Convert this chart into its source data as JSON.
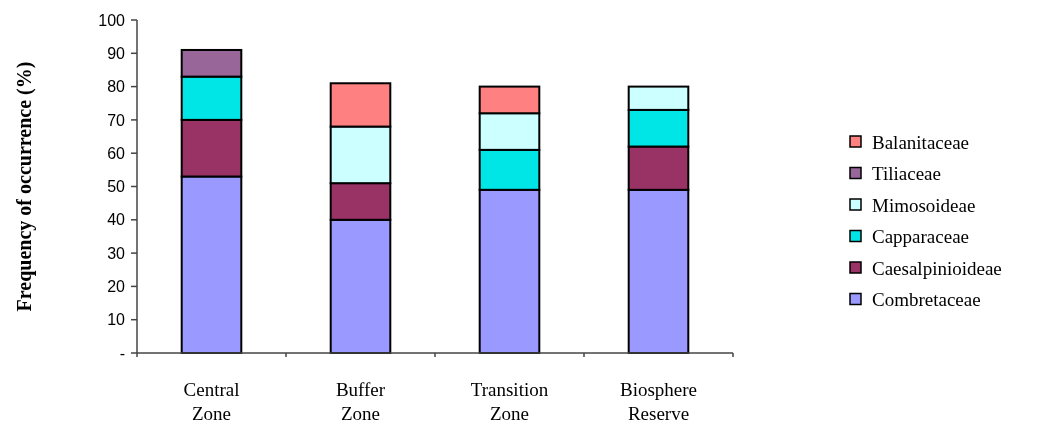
{
  "chart_data": {
    "type": "bar",
    "stacked": true,
    "ylabel": "Frequency of occurrence (%)",
    "categories": [
      "Central Zone",
      "Buffer Zone",
      "Transition Zone",
      "Biosphere Reserve"
    ],
    "ylim": [
      0,
      100
    ],
    "yticks": [
      {
        "value": 0,
        "label": "-"
      },
      10,
      20,
      30,
      40,
      50,
      60,
      70,
      80,
      90,
      100
    ],
    "grid": false,
    "legend": "right",
    "series": [
      {
        "name": "Combretaceae",
        "color": "#9999ff",
        "values": [
          53,
          40,
          49,
          49
        ]
      },
      {
        "name": "Caesalpinioideae",
        "color": "#993366",
        "values": [
          17,
          11,
          0,
          13
        ]
      },
      {
        "name": "Capparaceae",
        "color": "#00e5e5",
        "values": [
          13,
          0,
          12,
          11
        ]
      },
      {
        "name": "Mimosoideae",
        "color": "#ccffff",
        "values": [
          0,
          17,
          11,
          7
        ]
      },
      {
        "name": "Tiliaceae",
        "color": "#996699",
        "values": [
          8,
          0,
          0,
          0
        ]
      },
      {
        "name": "Balanitaceae",
        "color": "#ff8080",
        "values": [
          0,
          13,
          8,
          0
        ]
      }
    ]
  }
}
